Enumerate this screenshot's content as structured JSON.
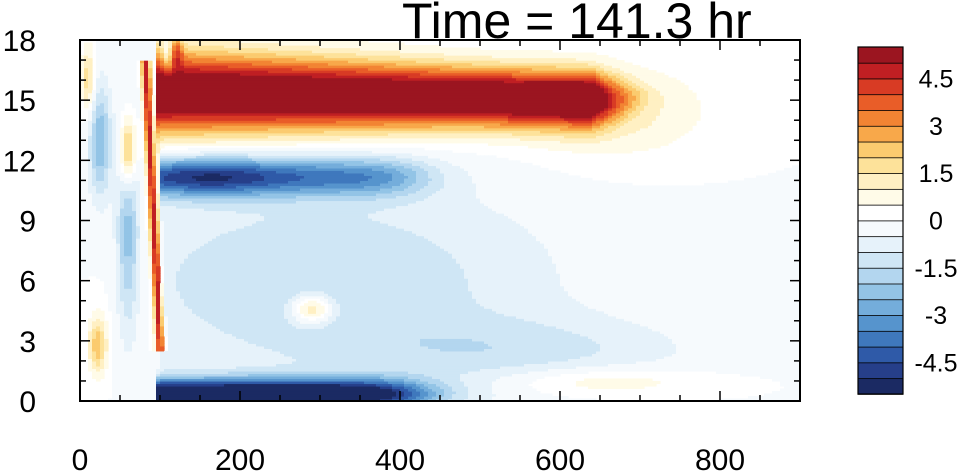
{
  "chart_data": {
    "type": "heatmap",
    "title": "Time = 141.3 hr",
    "xlabel": "",
    "ylabel": "",
    "xlim": [
      0,
      900
    ],
    "ylim": [
      0,
      18
    ],
    "x_ticks": [
      0,
      200,
      400,
      600,
      800
    ],
    "x_tick_labels": [
      "0",
      "200",
      "400",
      "600",
      "800"
    ],
    "y_ticks": [
      0,
      3,
      6,
      9,
      12,
      15,
      18
    ],
    "y_tick_labels": [
      "0",
      "3",
      "6",
      "9",
      "12",
      "15",
      "18"
    ],
    "colorbar": {
      "levels": [
        -5.5,
        -5,
        -4.5,
        -4,
        -3.5,
        -3,
        -2.5,
        -2,
        -1.5,
        -1,
        -0.5,
        0,
        0.5,
        1,
        1.5,
        2,
        2.5,
        3,
        3.5,
        4,
        4.5,
        5,
        5.5
      ],
      "colors": [
        "#1b2a63",
        "#263f8a",
        "#2f5aa8",
        "#3f78bd",
        "#5694cd",
        "#74addb",
        "#93c4e6",
        "#b3d6ef",
        "#cfe6f5",
        "#e6f2fa",
        "#f6fafd",
        "#ffffff",
        "#fffbe8",
        "#fff0c3",
        "#fde29a",
        "#fbcb6f",
        "#f8a84a",
        "#f28433",
        "#e95d28",
        "#d83b24",
        "#c01f23",
        "#9b1520"
      ],
      "tick_values": [
        4.5,
        3,
        1.5,
        0,
        -1.5,
        -3,
        -4.5
      ],
      "tick_labels": [
        "4.5",
        "3",
        "1.5",
        "0",
        "-1.5",
        "-3",
        "-4.5"
      ]
    },
    "features": [
      {
        "name": "upper warm anomaly core",
        "x_range": [
          95,
          690
        ],
        "y_center": 15.3,
        "peak": 5.5
      },
      {
        "name": "cold anomaly band",
        "x_range": [
          100,
          420
        ],
        "y_center": 11.2,
        "peak": -4.5
      },
      {
        "name": "near-surface cold anomaly",
        "x_range": [
          95,
          480
        ],
        "y_center": 0.5,
        "peak": -5.5
      },
      {
        "name": "sloping warm front",
        "x_range": [
          80,
          100
        ],
        "y_range": [
          4,
          17
        ],
        "peak": 4.5
      }
    ]
  }
}
